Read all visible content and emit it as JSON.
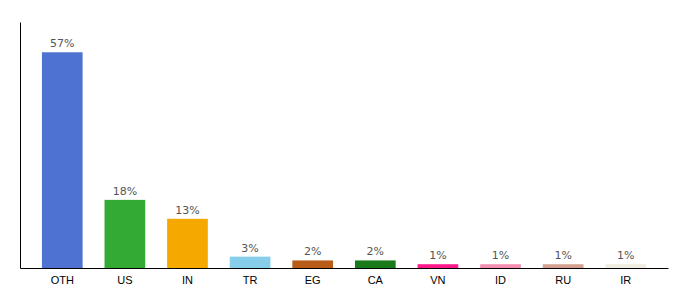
{
  "chart_data": {
    "type": "bar",
    "categories": [
      "OTH",
      "US",
      "IN",
      "TR",
      "EG",
      "CA",
      "VN",
      "ID",
      "RU",
      "IR"
    ],
    "values": [
      57,
      18,
      13,
      3,
      2,
      2,
      1,
      1,
      1,
      1
    ],
    "value_labels": [
      "57%",
      "18%",
      "13%",
      "3%",
      "2%",
      "2%",
      "1%",
      "1%",
      "1%",
      "1%"
    ],
    "colors": [
      "#4d72d1",
      "#33aa33",
      "#f5a800",
      "#87ceeb",
      "#b85c18",
      "#1a7a1a",
      "#ff1a8c",
      "#f48fb1",
      "#d4a090",
      "#f0ede0"
    ],
    "ylim": [
      0,
      65
    ],
    "data_labels": true,
    "tick_labels": "x"
  }
}
